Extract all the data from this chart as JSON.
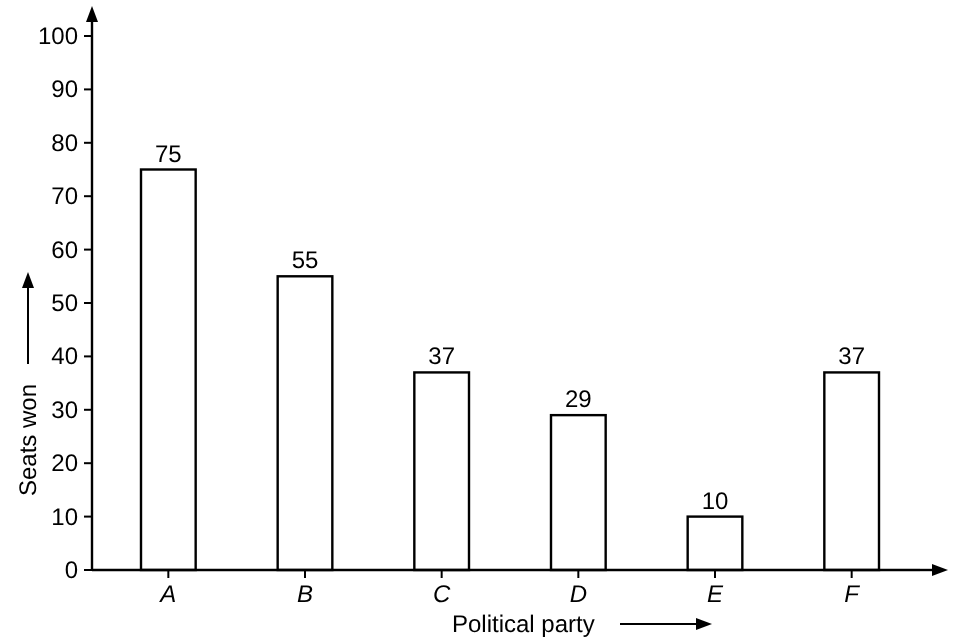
{
  "chart_data": {
    "type": "bar",
    "xlabel": "Political party",
    "ylabel": "Seats won",
    "categories": [
      "A",
      "B",
      "C",
      "D",
      "E",
      "F"
    ],
    "values": [
      75,
      55,
      37,
      29,
      10,
      37
    ],
    "color": "#ffffff",
    "ylim": [
      0,
      100
    ],
    "yticks": [
      0,
      10,
      20,
      30,
      40,
      50,
      60,
      70,
      80,
      90,
      100
    ],
    "data_labels": true,
    "grid": false
  }
}
